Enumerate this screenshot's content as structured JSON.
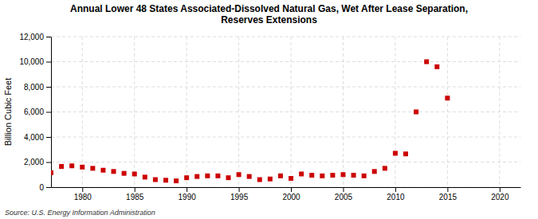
{
  "chart_data": {
    "type": "scatter",
    "title": "Annual Lower 48 States Associated-Dissolved Natural Gas, Wet After Lease Separation,\nReserves Extensions",
    "ylabel": "Billion Cubic Feet",
    "source": "Source: U.S. Energy Information Administration",
    "color": "#cc0000",
    "marker": "square",
    "grid": true,
    "xlim": [
      1977,
      2022
    ],
    "ylim": [
      0,
      12000
    ],
    "xticks": [
      1980,
      1985,
      1990,
      1995,
      2000,
      2005,
      2010,
      2015,
      2020
    ],
    "yticks": [
      0,
      {
        "value": 2000,
        "label": "2,000"
      },
      {
        "value": 4000,
        "label": "4,000"
      },
      {
        "value": 6000,
        "label": "6,000"
      },
      {
        "value": 8000,
        "label": "8,000"
      },
      {
        "value": 10000,
        "label": "10,000"
      },
      {
        "value": 12000,
        "label": "12,000"
      }
    ],
    "x": [
      1977,
      1978,
      1979,
      1980,
      1981,
      1982,
      1983,
      1984,
      1985,
      1986,
      1987,
      1988,
      1989,
      1990,
      1991,
      1992,
      1993,
      1994,
      1995,
      1996,
      1997,
      1998,
      1999,
      2000,
      2001,
      2002,
      2003,
      2004,
      2005,
      2006,
      2007,
      2008,
      2009,
      2010,
      2011,
      2012,
      2013,
      2014,
      2015
    ],
    "values": [
      1150,
      1650,
      1700,
      1600,
      1500,
      1350,
      1250,
      1100,
      1050,
      800,
      600,
      550,
      500,
      750,
      850,
      900,
      900,
      750,
      1000,
      850,
      600,
      650,
      900,
      700,
      1050,
      950,
      900,
      950,
      1000,
      950,
      900,
      1250,
      1500,
      2700,
      2650,
      6000,
      10000,
      9600,
      7100
    ]
  }
}
